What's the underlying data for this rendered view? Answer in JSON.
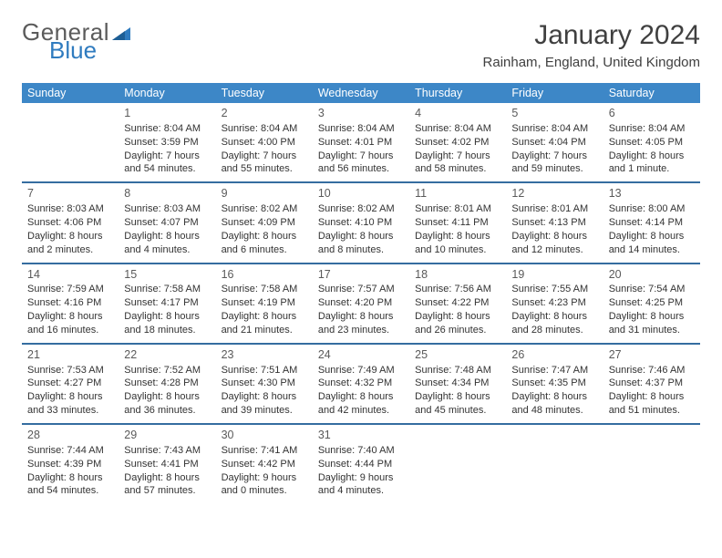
{
  "brand": {
    "word1": "General",
    "word2": "Blue"
  },
  "title": "January 2024",
  "location": "Rainham, England, United Kingdom",
  "colors": {
    "header_bg": "#3d87c7",
    "header_text": "#ffffff",
    "row_divider": "#356da0",
    "text": "#333333",
    "brand_gray": "#5b5b5b",
    "brand_blue": "#2f7bbf"
  },
  "day_headers": [
    "Sunday",
    "Monday",
    "Tuesday",
    "Wednesday",
    "Thursday",
    "Friday",
    "Saturday"
  ],
  "weeks": [
    [
      null,
      {
        "n": "1",
        "sr": "Sunrise: 8:04 AM",
        "ss": "Sunset: 3:59 PM",
        "d1": "Daylight: 7 hours",
        "d2": "and 54 minutes."
      },
      {
        "n": "2",
        "sr": "Sunrise: 8:04 AM",
        "ss": "Sunset: 4:00 PM",
        "d1": "Daylight: 7 hours",
        "d2": "and 55 minutes."
      },
      {
        "n": "3",
        "sr": "Sunrise: 8:04 AM",
        "ss": "Sunset: 4:01 PM",
        "d1": "Daylight: 7 hours",
        "d2": "and 56 minutes."
      },
      {
        "n": "4",
        "sr": "Sunrise: 8:04 AM",
        "ss": "Sunset: 4:02 PM",
        "d1": "Daylight: 7 hours",
        "d2": "and 58 minutes."
      },
      {
        "n": "5",
        "sr": "Sunrise: 8:04 AM",
        "ss": "Sunset: 4:04 PM",
        "d1": "Daylight: 7 hours",
        "d2": "and 59 minutes."
      },
      {
        "n": "6",
        "sr": "Sunrise: 8:04 AM",
        "ss": "Sunset: 4:05 PM",
        "d1": "Daylight: 8 hours",
        "d2": "and 1 minute."
      }
    ],
    [
      {
        "n": "7",
        "sr": "Sunrise: 8:03 AM",
        "ss": "Sunset: 4:06 PM",
        "d1": "Daylight: 8 hours",
        "d2": "and 2 minutes."
      },
      {
        "n": "8",
        "sr": "Sunrise: 8:03 AM",
        "ss": "Sunset: 4:07 PM",
        "d1": "Daylight: 8 hours",
        "d2": "and 4 minutes."
      },
      {
        "n": "9",
        "sr": "Sunrise: 8:02 AM",
        "ss": "Sunset: 4:09 PM",
        "d1": "Daylight: 8 hours",
        "d2": "and 6 minutes."
      },
      {
        "n": "10",
        "sr": "Sunrise: 8:02 AM",
        "ss": "Sunset: 4:10 PM",
        "d1": "Daylight: 8 hours",
        "d2": "and 8 minutes."
      },
      {
        "n": "11",
        "sr": "Sunrise: 8:01 AM",
        "ss": "Sunset: 4:11 PM",
        "d1": "Daylight: 8 hours",
        "d2": "and 10 minutes."
      },
      {
        "n": "12",
        "sr": "Sunrise: 8:01 AM",
        "ss": "Sunset: 4:13 PM",
        "d1": "Daylight: 8 hours",
        "d2": "and 12 minutes."
      },
      {
        "n": "13",
        "sr": "Sunrise: 8:00 AM",
        "ss": "Sunset: 4:14 PM",
        "d1": "Daylight: 8 hours",
        "d2": "and 14 minutes."
      }
    ],
    [
      {
        "n": "14",
        "sr": "Sunrise: 7:59 AM",
        "ss": "Sunset: 4:16 PM",
        "d1": "Daylight: 8 hours",
        "d2": "and 16 minutes."
      },
      {
        "n": "15",
        "sr": "Sunrise: 7:58 AM",
        "ss": "Sunset: 4:17 PM",
        "d1": "Daylight: 8 hours",
        "d2": "and 18 minutes."
      },
      {
        "n": "16",
        "sr": "Sunrise: 7:58 AM",
        "ss": "Sunset: 4:19 PM",
        "d1": "Daylight: 8 hours",
        "d2": "and 21 minutes."
      },
      {
        "n": "17",
        "sr": "Sunrise: 7:57 AM",
        "ss": "Sunset: 4:20 PM",
        "d1": "Daylight: 8 hours",
        "d2": "and 23 minutes."
      },
      {
        "n": "18",
        "sr": "Sunrise: 7:56 AM",
        "ss": "Sunset: 4:22 PM",
        "d1": "Daylight: 8 hours",
        "d2": "and 26 minutes."
      },
      {
        "n": "19",
        "sr": "Sunrise: 7:55 AM",
        "ss": "Sunset: 4:23 PM",
        "d1": "Daylight: 8 hours",
        "d2": "and 28 minutes."
      },
      {
        "n": "20",
        "sr": "Sunrise: 7:54 AM",
        "ss": "Sunset: 4:25 PM",
        "d1": "Daylight: 8 hours",
        "d2": "and 31 minutes."
      }
    ],
    [
      {
        "n": "21",
        "sr": "Sunrise: 7:53 AM",
        "ss": "Sunset: 4:27 PM",
        "d1": "Daylight: 8 hours",
        "d2": "and 33 minutes."
      },
      {
        "n": "22",
        "sr": "Sunrise: 7:52 AM",
        "ss": "Sunset: 4:28 PM",
        "d1": "Daylight: 8 hours",
        "d2": "and 36 minutes."
      },
      {
        "n": "23",
        "sr": "Sunrise: 7:51 AM",
        "ss": "Sunset: 4:30 PM",
        "d1": "Daylight: 8 hours",
        "d2": "and 39 minutes."
      },
      {
        "n": "24",
        "sr": "Sunrise: 7:49 AM",
        "ss": "Sunset: 4:32 PM",
        "d1": "Daylight: 8 hours",
        "d2": "and 42 minutes."
      },
      {
        "n": "25",
        "sr": "Sunrise: 7:48 AM",
        "ss": "Sunset: 4:34 PM",
        "d1": "Daylight: 8 hours",
        "d2": "and 45 minutes."
      },
      {
        "n": "26",
        "sr": "Sunrise: 7:47 AM",
        "ss": "Sunset: 4:35 PM",
        "d1": "Daylight: 8 hours",
        "d2": "and 48 minutes."
      },
      {
        "n": "27",
        "sr": "Sunrise: 7:46 AM",
        "ss": "Sunset: 4:37 PM",
        "d1": "Daylight: 8 hours",
        "d2": "and 51 minutes."
      }
    ],
    [
      {
        "n": "28",
        "sr": "Sunrise: 7:44 AM",
        "ss": "Sunset: 4:39 PM",
        "d1": "Daylight: 8 hours",
        "d2": "and 54 minutes."
      },
      {
        "n": "29",
        "sr": "Sunrise: 7:43 AM",
        "ss": "Sunset: 4:41 PM",
        "d1": "Daylight: 8 hours",
        "d2": "and 57 minutes."
      },
      {
        "n": "30",
        "sr": "Sunrise: 7:41 AM",
        "ss": "Sunset: 4:42 PM",
        "d1": "Daylight: 9 hours",
        "d2": "and 0 minutes."
      },
      {
        "n": "31",
        "sr": "Sunrise: 7:40 AM",
        "ss": "Sunset: 4:44 PM",
        "d1": "Daylight: 9 hours",
        "d2": "and 4 minutes."
      },
      null,
      null,
      null
    ]
  ]
}
